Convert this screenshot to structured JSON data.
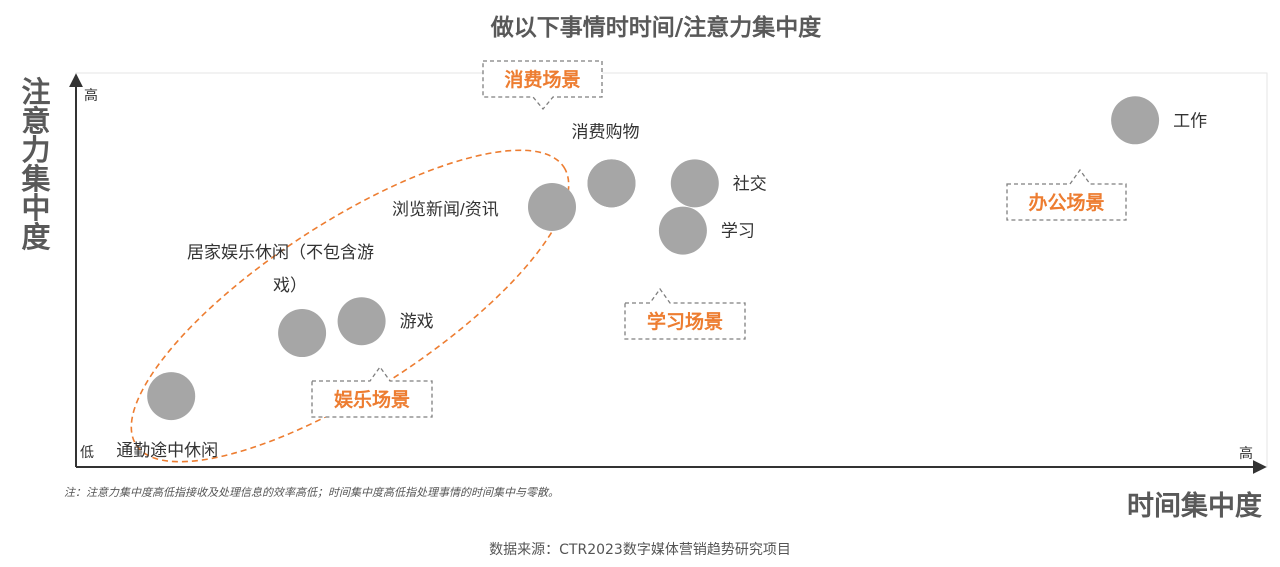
{
  "chart_data": {
    "type": "scatter",
    "title": "做以下事情时时间/注意力集中度",
    "xlabel": "时间集中度",
    "ylabel": "注意力集中度",
    "axis_ticks": {
      "y_high": "高",
      "y_low": "低",
      "x_high": "高"
    },
    "xlim": [
      0,
      100
    ],
    "ylim": [
      0,
      100
    ],
    "grid": false,
    "points": [
      {
        "label": "通勤途中休闲",
        "x": 8,
        "y": 18
      },
      {
        "label": "",
        "x": 19,
        "y": 34
      },
      {
        "label": "游戏",
        "x": 24,
        "y": 37
      },
      {
        "label": "浏览新闻/资讯",
        "x": 40,
        "y": 66
      },
      {
        "label": "",
        "x": 45,
        "y": 72
      },
      {
        "label": "消费购物",
        "x": 45,
        "y": 72
      },
      {
        "label": "社交",
        "x": 52,
        "y": 72
      },
      {
        "label": "学习",
        "x": 51,
        "y": 60
      },
      {
        "label": "工作",
        "x": 89,
        "y": 88
      }
    ],
    "point_color": "#a6a6a6",
    "group_labels": [
      "消费场景",
      "学习场景",
      "办公场景",
      "娱乐场景"
    ],
    "group_label_color": "#ed7d31",
    "ellipse_color": "#ed7d31",
    "annotation_extra": "居家娱乐休闲（不包含游戏）"
  },
  "footnote": "注：注意力集中度高低指接收及处理信息的效率高低；时间集中度高低指处理事情的时间集中与零散。",
  "source": "数据来源：CTR2023数字媒体营销趋势研究项目"
}
